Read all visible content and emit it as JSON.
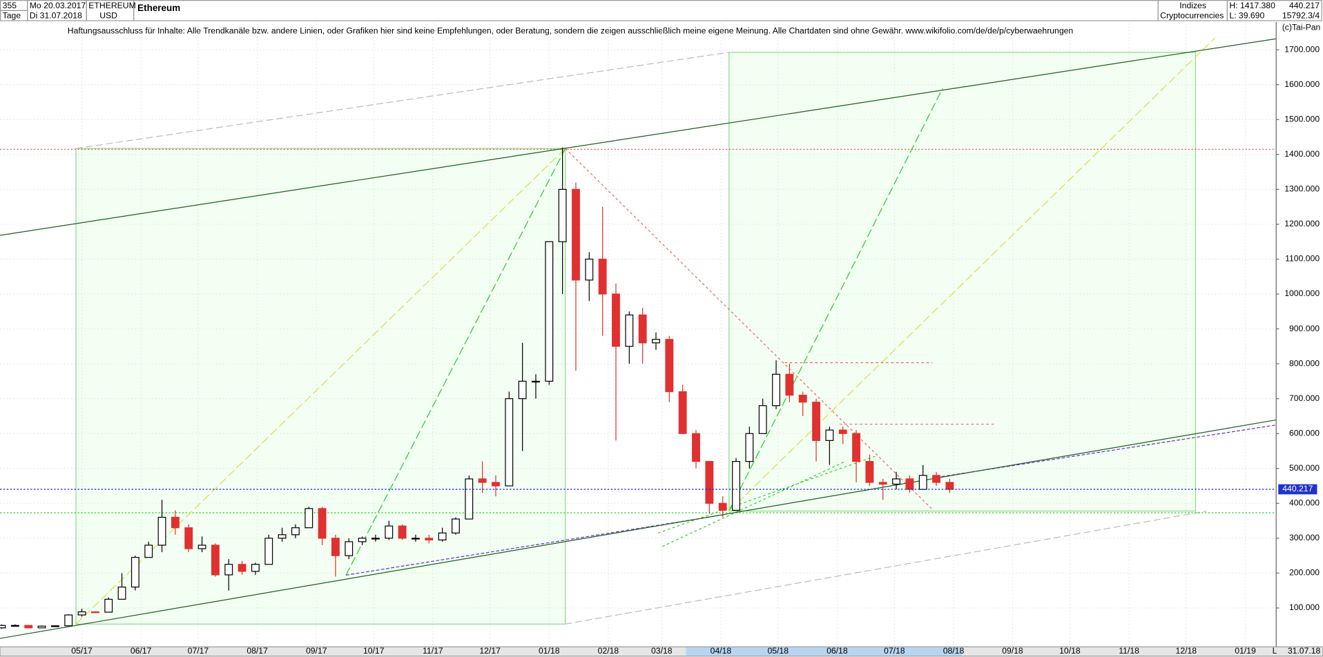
{
  "header": {
    "count": "355",
    "period": "Tage",
    "start": "Mo 20.03.2017",
    "end": "Di 31.07.2018",
    "symbol": "ETHEREUM",
    "currency": "USD",
    "name": "Ethereum",
    "group": "Indizes",
    "market": "Cryptocurrencies",
    "high": "H: 1417.380",
    "low": "L: 39.690",
    "close": "440.217",
    "volume": "15792.3/4",
    "copyright": "(c)Tai-Pan",
    "disclaimer": "Haftungsausschluss für Inhalte: Alle Trendkanäle bzw. andere Linien, oder Grafiken hier sind keine Empfehlungen, oder Beratung, sondern die zeigen ausschließlich meine eigene Meinung. Alle Chartdaten sind ohne Gewähr.  www.wikifolio.com/de/de/p/cyberwaehrungen",
    "x_end_marker": "L",
    "x_end_date": "31.07.18"
  },
  "chart_data": {
    "type": "candlestick",
    "categories": [
      null,
      null,
      null,
      null,
      null,
      null,
      null,
      null,
      null,
      null,
      null,
      null,
      null,
      null,
      null,
      null,
      null,
      null,
      null,
      null,
      null,
      null,
      null,
      null,
      null,
      null,
      null,
      null,
      null,
      null,
      null,
      null,
      null,
      null,
      null,
      null,
      null,
      null,
      null,
      null,
      null,
      null,
      null,
      null,
      null,
      null,
      null,
      null,
      null,
      null,
      null,
      null,
      null,
      null,
      null,
      null,
      null,
      null,
      null,
      null,
      null,
      null,
      null,
      null,
      null,
      null,
      null,
      null,
      null,
      null,
      null,
      null
    ],
    "open": [
      43,
      50,
      50,
      43,
      48,
      49,
      80,
      89,
      88,
      125,
      160,
      245,
      280,
      360,
      330,
      270,
      280,
      195,
      225,
      205,
      225,
      300,
      310,
      330,
      385,
      300,
      250,
      290,
      300,
      300,
      335,
      300,
      300,
      295,
      315,
      355,
      470,
      460,
      450,
      700,
      750,
      750,
      1150,
      1300,
      1040,
      1100,
      1000,
      850,
      940,
      860,
      870,
      720,
      600,
      520,
      400,
      380,
      520,
      600,
      680,
      770,
      710,
      690,
      580,
      610,
      600,
      520,
      460,
      455,
      470,
      440,
      480,
      460
    ],
    "high": [
      53,
      53,
      51,
      50,
      50,
      82,
      98,
      90,
      130,
      200,
      250,
      290,
      410,
      380,
      340,
      305,
      285,
      240,
      235,
      230,
      310,
      330,
      340,
      390,
      390,
      310,
      300,
      305,
      310,
      350,
      340,
      310,
      310,
      330,
      360,
      480,
      520,
      480,
      720,
      860,
      770,
      1150,
      1420,
      1320,
      1120,
      1250,
      1030,
      950,
      960,
      890,
      880,
      740,
      610,
      520,
      420,
      530,
      620,
      700,
      810,
      800,
      720,
      700,
      620,
      620,
      610,
      540,
      470,
      490,
      480,
      510,
      490,
      470
    ],
    "low": [
      40,
      47,
      42,
      42,
      46,
      48,
      75,
      85,
      88,
      125,
      150,
      245,
      260,
      310,
      260,
      260,
      190,
      150,
      195,
      195,
      225,
      290,
      300,
      330,
      280,
      190,
      240,
      280,
      290,
      295,
      295,
      290,
      285,
      290,
      310,
      355,
      430,
      420,
      450,
      550,
      700,
      740,
      1000,
      780,
      980,
      880,
      580,
      800,
      800,
      840,
      690,
      600,
      500,
      370,
      360,
      380,
      500,
      600,
      670,
      690,
      650,
      520,
      510,
      570,
      460,
      450,
      410,
      440,
      430,
      440,
      450,
      430
    ],
    "close": [
      50,
      50,
      43,
      48,
      49,
      80,
      89,
      88,
      125,
      160,
      245,
      280,
      360,
      330,
      270,
      280,
      195,
      225,
      205,
      225,
      300,
      310,
      330,
      385,
      300,
      250,
      290,
      300,
      300,
      335,
      300,
      300,
      295,
      315,
      355,
      470,
      460,
      450,
      700,
      750,
      750,
      1150,
      1300,
      1040,
      1100,
      1000,
      850,
      940,
      860,
      870,
      720,
      600,
      520,
      400,
      380,
      520,
      600,
      680,
      770,
      710,
      690,
      580,
      610,
      600,
      520,
      460,
      455,
      470,
      440,
      480,
      460,
      440
    ],
    "up_color": "#000000",
    "down_color": "#e03030",
    "xlim": [
      -0.13,
      95.42
    ],
    "xticks": [
      {
        "value": 6.0,
        "label": "05/17"
      },
      {
        "value": 10.43,
        "label": "06/17"
      },
      {
        "value": 14.71,
        "label": "07/17"
      },
      {
        "value": 19.14,
        "label": "08/17"
      },
      {
        "value": 23.57,
        "label": "09/17"
      },
      {
        "value": 27.86,
        "label": "10/17"
      },
      {
        "value": 32.29,
        "label": "11/17"
      },
      {
        "value": 36.57,
        "label": "12/17"
      },
      {
        "value": 41.0,
        "label": "01/18"
      },
      {
        "value": 45.43,
        "label": "02/18"
      },
      {
        "value": 49.43,
        "label": "03/18"
      },
      {
        "value": 53.86,
        "label": "04/18"
      },
      {
        "value": 58.14,
        "label": "05/18"
      },
      {
        "value": 62.57,
        "label": "06/18"
      },
      {
        "value": 66.86,
        "label": "07/18"
      },
      {
        "value": 71.29,
        "label": "08/18"
      },
      {
        "value": 75.71,
        "label": "09/18"
      },
      {
        "value": 80.0,
        "label": "10/18"
      },
      {
        "value": 84.43,
        "label": "11/18"
      },
      {
        "value": 88.71,
        "label": "12/18"
      },
      {
        "value": 93.14,
        "label": "01/19"
      }
    ],
    "ylim": [
      -9,
      1775
    ],
    "yticks": [
      {
        "value": 100,
        "label": "100.000"
      },
      {
        "value": 200,
        "label": "200.000"
      },
      {
        "value": 300,
        "label": "300.000"
      },
      {
        "value": 400,
        "label": "400.000"
      },
      {
        "value": 500,
        "label": "500.000"
      },
      {
        "value": 600,
        "label": "600.000"
      },
      {
        "value": 700,
        "label": "700.000"
      },
      {
        "value": 800,
        "label": "800.000"
      },
      {
        "value": 900,
        "label": "900.000"
      },
      {
        "value": 1000,
        "label": "1000.000"
      },
      {
        "value": 1100,
        "label": "1100.000"
      },
      {
        "value": 1200,
        "label": "1200.000"
      },
      {
        "value": 1300,
        "label": "1300.000"
      },
      {
        "value": 1400,
        "label": "1400.000"
      },
      {
        "value": 1500,
        "label": "1500.000"
      },
      {
        "value": 1600,
        "label": "1600.000"
      },
      {
        "value": 1700,
        "label": "1700.000"
      }
    ],
    "grid": true,
    "last_price": {
      "value": 440.217,
      "label": "440.217"
    }
  }
}
